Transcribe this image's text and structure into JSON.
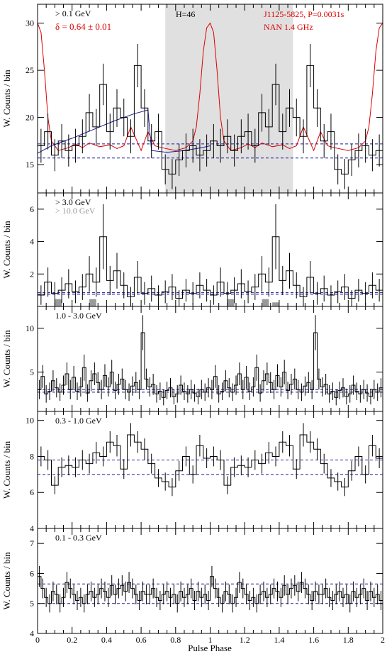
{
  "figure": {
    "xlabel": "Pulse Phase",
    "ylabel": "W. Counts / bin",
    "x_tick_labels": [
      "0",
      "0.2",
      "0.4",
      "0.6",
      "0.8",
      "1",
      "1.2",
      "1.4",
      "1.6",
      "1.8",
      "2"
    ]
  },
  "colors": {
    "histogram": "#000000",
    "radio": "#dd0000",
    "model": "#1a1a9a",
    "background_level": "#1a1a9a",
    "onpulse_band": "#e0e0e0",
    "highE_bars": "#999999"
  },
  "panels": [
    {
      "label": "> 0.1 GeV",
      "delta": "δ = 0.64 ± 0.01",
      "h_test": "H=46",
      "pulsar": "J1125-5825, P=0.0031s",
      "radio_info": "NAN 1.4 GHz"
    },
    {
      "label": "> 3.0 GeV",
      "label2": "> 10.0 GeV"
    },
    {
      "label": "1.0 - 3.0 GeV"
    },
    {
      "label": "0.3 - 1.0 GeV"
    },
    {
      "label": "0.1 - 0.3 GeV"
    }
  ],
  "chart_data": [
    {
      "type": "histogram",
      "label": "> 0.1 GeV",
      "xlim": [
        0,
        2
      ],
      "ylim": [
        12,
        32
      ],
      "yticks": [
        15,
        20,
        25,
        30
      ],
      "bin_width": 0.04,
      "values": [
        17.0,
        18.5,
        16.0,
        17.5,
        16.5,
        17.0,
        18.0,
        20.5,
        19.0,
        23.5,
        18.5,
        21.0,
        20.0,
        18.0,
        25.5,
        21.0,
        17.5,
        18.5,
        14.5,
        14.0,
        15.5,
        16.5,
        17.0,
        16.0,
        16.5,
        17.5,
        17.0,
        18.0,
        16.5,
        18.0,
        18.5,
        17.0,
        20.5,
        19.0,
        23.5,
        18.5,
        21.0,
        20.0,
        18.0,
        25.5,
        21.0,
        17.5,
        18.5,
        14.5,
        14.0,
        15.5,
        16.5,
        17.0,
        16.0,
        16.5
      ],
      "errors": [
        1.8,
        1.9,
        1.7,
        1.8,
        1.7,
        1.8,
        1.8,
        2.0,
        1.9,
        2.2,
        1.9,
        2.0,
        2.0,
        1.8,
        2.3,
        2.0,
        1.8,
        1.9,
        1.6,
        1.6,
        1.7,
        1.8,
        1.8,
        1.7,
        1.7,
        1.8,
        1.8,
        1.8,
        1.7,
        1.8,
        1.9,
        1.8,
        2.0,
        1.9,
        2.2,
        1.9,
        2.0,
        2.0,
        1.8,
        2.3,
        2.0,
        1.8,
        1.9,
        1.6,
        1.6,
        1.7,
        1.8,
        1.8,
        1.7,
        1.7
      ],
      "background_levels": [
        15.7,
        17.2
      ],
      "onpulse_band": [
        0.74,
        1.48
      ],
      "model_x": [
        0.0,
        0.08,
        0.2,
        0.32,
        0.44,
        0.56,
        0.64,
        0.66,
        0.75,
        0.85,
        0.95,
        1.0
      ],
      "model_y": [
        16.2,
        17.0,
        17.8,
        18.7,
        19.6,
        20.4,
        20.8,
        16.5,
        16.3,
        16.5,
        16.8,
        17.0
      ],
      "radio_x": [
        0.0,
        0.02,
        0.04,
        0.06,
        0.08,
        0.12,
        0.18,
        0.22,
        0.26,
        0.3,
        0.36,
        0.42,
        0.46,
        0.5,
        0.54,
        0.6,
        0.64,
        0.68,
        0.72,
        0.8,
        0.86,
        0.9,
        0.92,
        0.94,
        0.96,
        0.98,
        1.0,
        1.02,
        1.04,
        1.06,
        1.08,
        1.12,
        1.18,
        1.22,
        1.26,
        1.3,
        1.36,
        1.42,
        1.46,
        1.5,
        1.54,
        1.6,
        1.64,
        1.68,
        1.72,
        1.8,
        1.86,
        1.9,
        1.92,
        1.94,
        1.96,
        1.98,
        2.0
      ],
      "radio_y": [
        30.0,
        29.0,
        25.0,
        20.0,
        17.5,
        16.5,
        16.8,
        17.2,
        16.8,
        17.3,
        16.9,
        17.1,
        16.7,
        17.0,
        19.0,
        16.5,
        18.5,
        17.0,
        16.8,
        16.5,
        16.8,
        17.5,
        19.0,
        22.5,
        27.0,
        29.5,
        30.0,
        29.0,
        25.0,
        20.0,
        17.5,
        16.5,
        16.8,
        17.2,
        16.8,
        17.3,
        16.9,
        17.1,
        16.7,
        17.0,
        19.0,
        16.5,
        18.5,
        17.0,
        16.8,
        16.5,
        16.8,
        17.5,
        19.0,
        22.5,
        27.0,
        29.5,
        30.0
      ]
    },
    {
      "type": "histogram",
      "label": "> 3.0 GeV",
      "xlim": [
        0,
        2
      ],
      "ylim": [
        0,
        7
      ],
      "yticks": [
        2,
        4,
        6
      ],
      "bin_width": 0.04,
      "values": [
        0.7,
        1.5,
        0.8,
        1.0,
        1.4,
        0.9,
        1.2,
        2.0,
        1.5,
        4.3,
        1.6,
        2.2,
        1.3,
        0.6,
        1.8,
        0.8,
        1.1,
        0.7,
        0.9,
        1.2,
        0.5,
        1.0,
        0.8,
        1.3,
        1.0,
        0.7,
        1.5,
        0.8,
        1.0,
        1.4,
        0.9,
        1.2,
        2.0,
        1.5,
        4.3,
        1.6,
        2.2,
        1.3,
        0.6,
        1.8,
        0.8,
        1.1,
        0.7,
        0.9,
        1.2,
        0.5,
        1.0,
        0.8,
        1.3,
        1.0
      ],
      "errors": [
        0.6,
        0.9,
        0.7,
        0.8,
        0.9,
        0.7,
        0.8,
        1.1,
        0.9,
        2.0,
        0.9,
        1.1,
        0.8,
        0.6,
        1.0,
        0.7,
        0.8,
        0.6,
        0.7,
        0.8,
        0.5,
        0.7,
        0.7,
        0.8,
        0.7,
        0.6,
        0.9,
        0.7,
        0.8,
        0.9,
        0.7,
        0.8,
        1.1,
        0.9,
        2.0,
        0.9,
        1.1,
        0.8,
        0.6,
        1.0,
        0.7,
        0.8,
        0.6,
        0.7,
        0.8,
        0.5,
        0.7,
        0.7,
        0.8,
        0.7
      ],
      "background_levels": [
        0.75,
        0.85
      ],
      "gray_x": [
        0.1,
        0.3,
        1.1,
        1.3,
        1.36
      ],
      "gray_y": [
        0.45,
        0.45,
        0.45,
        0.45,
        0.25
      ]
    },
    {
      "type": "histogram",
      "label": "1.0 - 3.0 GeV",
      "xlim": [
        0,
        2
      ],
      "ylim": [
        0.5,
        12.5
      ],
      "yticks": [
        5,
        10
      ],
      "bin_width": 0.02,
      "values": [
        3.0,
        4.5,
        2.5,
        2.8,
        4.0,
        3.2,
        2.7,
        3.5,
        4.8,
        3.0,
        4.4,
        2.8,
        3.3,
        5.5,
        2.6,
        4.0,
        4.8,
        3.8,
        3.0,
        4.6,
        3.3,
        5.0,
        2.9,
        3.6,
        4.2,
        3.0,
        2.7,
        3.4,
        3.8,
        3.0,
        9.5,
        4.2,
        3.3,
        3.6,
        2.5,
        2.8,
        2.1,
        2.9,
        3.2,
        2.2,
        2.5,
        3.5,
        2.8,
        2.5,
        3.0,
        2.6,
        2.2,
        3.0,
        2.7,
        3.2,
        3.0,
        4.5,
        2.5,
        2.8,
        4.0,
        3.2,
        2.7,
        3.5,
        4.8,
        3.0,
        4.4,
        2.8,
        3.3,
        5.5,
        2.6,
        4.0,
        4.8,
        3.8,
        3.0,
        4.6,
        3.3,
        5.0,
        2.9,
        3.6,
        4.2,
        3.0,
        2.7,
        3.4,
        3.8,
        3.0,
        9.5,
        4.2,
        3.3,
        3.6,
        2.5,
        2.8,
        2.1,
        2.9,
        3.2,
        2.2,
        2.5,
        3.5,
        2.8,
        2.5,
        3.0,
        2.6,
        2.2,
        3.0,
        2.7,
        3.2
      ],
      "errors": [
        1.1,
        1.3,
        1.0,
        1.0,
        1.2,
        1.1,
        1.0,
        1.1,
        1.3,
        1.1,
        1.3,
        1.0,
        1.1,
        1.5,
        1.0,
        1.2,
        1.3,
        1.2,
        1.1,
        1.3,
        1.1,
        1.4,
        1.0,
        1.2,
        1.2,
        1.1,
        1.0,
        1.1,
        1.2,
        1.1,
        2.0,
        1.2,
        1.1,
        1.2,
        1.0,
        1.0,
        0.9,
        1.0,
        1.1,
        0.9,
        1.0,
        1.1,
        1.0,
        1.0,
        1.1,
        1.0,
        0.9,
        1.1,
        1.0,
        1.1,
        1.1,
        1.3,
        1.0,
        1.0,
        1.2,
        1.1,
        1.0,
        1.1,
        1.3,
        1.1,
        1.3,
        1.0,
        1.1,
        1.5,
        1.0,
        1.2,
        1.3,
        1.2,
        1.1,
        1.3,
        1.1,
        1.4,
        1.0,
        1.2,
        1.2,
        1.1,
        1.0,
        1.1,
        1.2,
        1.1,
        2.0,
        1.2,
        1.1,
        1.2,
        1.0,
        1.0,
        0.9,
        1.0,
        1.1,
        0.9,
        1.0,
        1.1,
        1.0,
        1.0,
        1.1,
        1.0,
        0.9,
        1.1,
        1.0,
        1.1
      ],
      "background_levels": [
        2.7,
        3.0
      ]
    },
    {
      "type": "histogram",
      "label": "0.3 - 1.0 GeV",
      "xlim": [
        0,
        2
      ],
      "ylim": [
        4,
        10.5
      ],
      "yticks": [
        4,
        6,
        8,
        10
      ],
      "bin_width": 0.04,
      "values": [
        8.0,
        7.8,
        6.4,
        7.4,
        7.5,
        7.4,
        7.8,
        7.6,
        8.2,
        8.0,
        8.8,
        8.6,
        7.3,
        9.2,
        8.8,
        8.4,
        7.6,
        6.8,
        6.6,
        6.3,
        7.2,
        8.0,
        7.0,
        8.6,
        7.9,
        8.0,
        7.8,
        6.4,
        7.4,
        7.5,
        7.4,
        7.8,
        7.6,
        8.2,
        8.0,
        8.8,
        8.6,
        7.3,
        9.2,
        8.8,
        8.4,
        7.6,
        6.8,
        6.6,
        6.3,
        7.2,
        8.0,
        7.0,
        8.6,
        7.9
      ],
      "errors": [
        0.55,
        0.55,
        0.5,
        0.55,
        0.55,
        0.55,
        0.55,
        0.55,
        0.6,
        0.55,
        0.6,
        0.6,
        0.55,
        0.65,
        0.6,
        0.6,
        0.55,
        0.5,
        0.5,
        0.5,
        0.55,
        0.55,
        0.5,
        0.6,
        0.55,
        0.55,
        0.55,
        0.5,
        0.55,
        0.55,
        0.55,
        0.55,
        0.55,
        0.6,
        0.55,
        0.6,
        0.6,
        0.55,
        0.65,
        0.6,
        0.6,
        0.55,
        0.5,
        0.5,
        0.5,
        0.55,
        0.55,
        0.5,
        0.6,
        0.55
      ],
      "background_levels": [
        7.0,
        7.8
      ]
    },
    {
      "type": "histogram",
      "label": "0.1 - 0.3 GeV",
      "xlim": [
        0,
        2
      ],
      "ylim": [
        4,
        7.5
      ],
      "yticks": [
        4,
        5,
        6,
        7
      ],
      "bin_width": 0.02,
      "values": [
        5.9,
        5.5,
        5.2,
        5.0,
        5.4,
        5.3,
        5.0,
        5.2,
        5.7,
        5.5,
        5.3,
        5.1,
        5.2,
        5.0,
        5.3,
        5.4,
        5.2,
        5.3,
        5.5,
        5.4,
        5.2,
        5.6,
        5.3,
        5.5,
        5.6,
        5.4,
        5.7,
        5.5,
        5.3,
        5.1,
        5.4,
        5.3,
        5.3,
        5.5,
        5.2,
        5.1,
        5.3,
        5.4,
        5.2,
        5.3,
        5.0,
        5.4,
        5.2,
        5.3,
        5.5,
        5.1,
        5.4,
        5.2,
        5.3,
        5.1,
        5.9,
        5.5,
        5.2,
        5.0,
        5.4,
        5.3,
        5.0,
        5.2,
        5.7,
        5.5,
        5.3,
        5.1,
        5.2,
        5.0,
        5.3,
        5.4,
        5.2,
        5.3,
        5.5,
        5.4,
        5.2,
        5.6,
        5.3,
        5.5,
        5.6,
        5.4,
        5.7,
        5.5,
        5.3,
        5.1,
        5.4,
        5.3,
        5.3,
        5.5,
        5.2,
        5.1,
        5.3,
        5.4,
        5.2,
        5.3,
        5.0,
        5.4,
        5.2,
        5.3,
        5.5,
        5.1,
        5.4,
        5.2,
        5.3,
        5.1
      ],
      "errors": [
        0.35,
        0.33,
        0.32,
        0.3,
        0.33,
        0.33,
        0.3,
        0.32,
        0.35,
        0.33,
        0.33,
        0.32,
        0.32,
        0.3,
        0.33,
        0.33,
        0.32,
        0.33,
        0.33,
        0.33,
        0.32,
        0.34,
        0.33,
        0.33,
        0.34,
        0.33,
        0.35,
        0.33,
        0.33,
        0.32,
        0.33,
        0.33,
        0.33,
        0.33,
        0.32,
        0.32,
        0.33,
        0.33,
        0.32,
        0.33,
        0.3,
        0.33,
        0.32,
        0.33,
        0.33,
        0.32,
        0.33,
        0.32,
        0.33,
        0.32,
        0.35,
        0.33,
        0.32,
        0.3,
        0.33,
        0.33,
        0.3,
        0.32,
        0.35,
        0.33,
        0.33,
        0.32,
        0.32,
        0.3,
        0.33,
        0.33,
        0.32,
        0.33,
        0.33,
        0.33,
        0.32,
        0.34,
        0.33,
        0.33,
        0.34,
        0.33,
        0.35,
        0.33,
        0.33,
        0.32,
        0.33,
        0.33,
        0.33,
        0.33,
        0.32,
        0.32,
        0.33,
        0.33,
        0.32,
        0.33,
        0.3,
        0.33,
        0.32,
        0.33,
        0.33,
        0.32,
        0.33,
        0.32,
        0.33,
        0.32
      ],
      "background_levels": [
        5.0,
        5.65
      ]
    }
  ]
}
